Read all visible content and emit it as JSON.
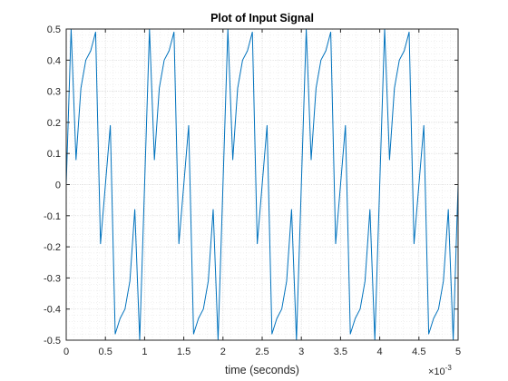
{
  "chart_data": {
    "type": "line",
    "title": "Plot of Input Signal",
    "xlabel": "time (seconds)",
    "ylabel": "",
    "x_exponent_label": "×10",
    "x_exponent_power": "-3",
    "xlim": [
      0,
      0.005
    ],
    "ylim": [
      -0.5,
      0.5
    ],
    "x_ticks": [
      0,
      0.0005,
      0.001,
      0.0015,
      0.002,
      0.0025,
      0.003,
      0.0035,
      0.004,
      0.0045,
      0.005
    ],
    "x_tick_labels": [
      "0",
      "0.5",
      "1",
      "1.5",
      "2",
      "2.5",
      "3",
      "3.5",
      "4",
      "4.5",
      "5"
    ],
    "y_ticks": [
      0.5,
      0.4,
      0.3,
      0.2,
      0.1,
      0,
      -0.1,
      -0.2,
      -0.3,
      -0.4,
      -0.5
    ],
    "y_tick_labels": [
      "0.5",
      "0.4",
      "0.3",
      "0.2",
      "0.1",
      "0",
      "-0.1",
      "-0.2",
      "-0.3",
      "-0.4",
      "-0.5"
    ],
    "grid": true,
    "minor_grid": true,
    "line_color": "#0072bd",
    "series": [
      {
        "x": [
          0,
          6.25e-05,
          0.000125,
          0.0001875,
          0.00025,
          0.0003125,
          0.000375,
          0.0004375,
          0.0005,
          0.0005625,
          0.000625,
          0.0006875,
          0.00075,
          0.0008125,
          0.000875,
          0.0009375,
          0.001,
          0.0010625,
          0.001125,
          0.0011875,
          0.00125,
          0.0013125,
          0.001375,
          0.0014375,
          0.0015,
          0.0015625,
          0.001625,
          0.0016875,
          0.00175,
          0.0018125,
          0.001875,
          0.0019375,
          0.002,
          0.0020625,
          0.002125,
          0.0021875,
          0.00225,
          0.0023125,
          0.002375,
          0.0024375,
          0.0025,
          0.0025625,
          0.002625,
          0.0026875,
          0.00275,
          0.0028125,
          0.002875,
          0.0029375,
          0.003,
          0.0030625,
          0.003125,
          0.0031875,
          0.00325,
          0.0033125,
          0.003375,
          0.0034375,
          0.0035,
          0.0035625,
          0.003625,
          0.0036875,
          0.00375,
          0.0038125,
          0.003875,
          0.0039375,
          0.004,
          0.0040625,
          0.004125,
          0.0041875,
          0.00425,
          0.0043125,
          0.004375,
          0.0044375,
          0.0045,
          0.0045625,
          0.004625,
          0.0046875,
          0.00475,
          0.0048125,
          0.004875,
          0.0049375,
          0.005
        ],
        "y": [
          0.0,
          0.5,
          0.08,
          0.31,
          0.4,
          0.43,
          0.49,
          -0.19,
          0.0,
          0.19,
          -0.48,
          -0.43,
          -0.4,
          -0.31,
          -0.08,
          -0.5,
          0.0,
          0.5,
          0.08,
          0.31,
          0.4,
          0.43,
          0.49,
          -0.19,
          0.0,
          0.19,
          -0.48,
          -0.43,
          -0.4,
          -0.31,
          -0.08,
          -0.5,
          0.0,
          0.5,
          0.08,
          0.31,
          0.4,
          0.43,
          0.49,
          -0.19,
          0.0,
          0.19,
          -0.48,
          -0.43,
          -0.4,
          -0.31,
          -0.08,
          -0.5,
          0.0,
          0.5,
          0.08,
          0.31,
          0.4,
          0.43,
          0.49,
          -0.19,
          0.0,
          0.19,
          -0.48,
          -0.43,
          -0.4,
          -0.31,
          -0.08,
          -0.5,
          0.0,
          0.5,
          0.08,
          0.31,
          0.4,
          0.43,
          0.49,
          -0.19,
          0.0,
          0.19,
          -0.48,
          -0.43,
          -0.4,
          -0.31,
          -0.08,
          -0.5,
          0.0
        ]
      }
    ]
  }
}
